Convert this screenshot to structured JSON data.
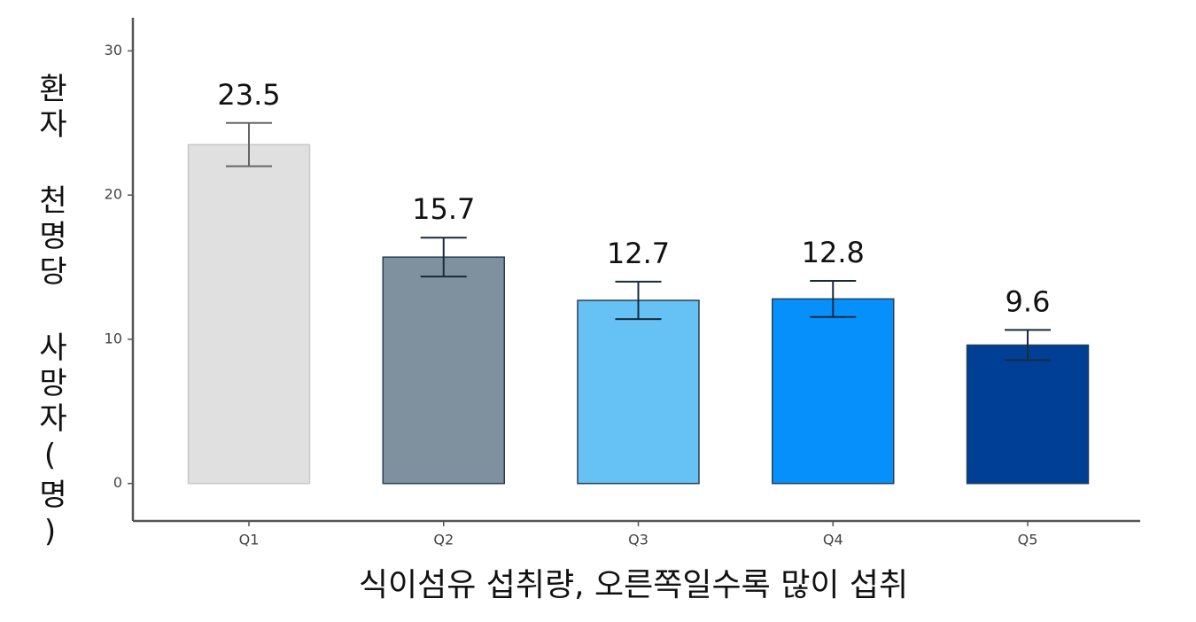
{
  "chart_data": {
    "type": "bar",
    "x_label": "식이섬유 섭취량, 오른쪽일수록 많이 섭취",
    "y_label": "환자 천명당 사망자(명)",
    "categories": [
      "Q1",
      "Q2",
      "Q3",
      "Q4",
      "Q5"
    ],
    "values": [
      23.5,
      15.7,
      12.7,
      12.8,
      9.6
    ],
    "errors": [
      1.5,
      1.35,
      1.3,
      1.25,
      1.05
    ],
    "colors": [
      "#e0e0e0",
      "#7f919e",
      "#66c1f5",
      "#0590fb",
      "#003f96"
    ],
    "ylim": [
      -2.6,
      32.3
    ],
    "yticks": [
      0,
      10,
      20,
      30
    ],
    "grid": false
  }
}
